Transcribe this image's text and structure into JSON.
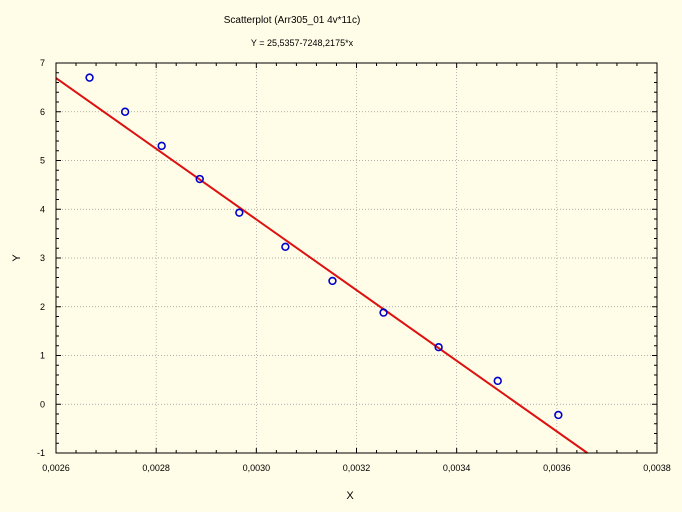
{
  "chart_data": {
    "type": "scatter",
    "title": "Scatterplot (Arr305_01 4v*11c)",
    "subtitle": "Y   = 25,5357-7248,2175*x",
    "xlabel": "X",
    "ylabel": "Y",
    "xlim": [
      0.0026,
      0.0038
    ],
    "ylim": [
      -1,
      7
    ],
    "xticks": [
      0.0026,
      0.0028,
      0.003,
      0.0032,
      0.0034,
      0.0036,
      0.0038
    ],
    "xtick_labels": [
      "0,0026",
      "0,0028",
      "0,0030",
      "0,0032",
      "0,0034",
      "0,0036",
      "0,0038"
    ],
    "yticks": [
      -1,
      0,
      1,
      2,
      3,
      4,
      5,
      6,
      7
    ],
    "ytick_labels": [
      "-1",
      "0",
      "1",
      "2",
      "3",
      "4",
      "5",
      "6",
      "7"
    ],
    "grid": true,
    "points": [
      {
        "x": 0.002667,
        "y": 6.7
      },
      {
        "x": 0.002738,
        "y": 6.0
      },
      {
        "x": 0.002811,
        "y": 5.3
      },
      {
        "x": 0.002887,
        "y": 4.62
      },
      {
        "x": 0.002966,
        "y": 3.93
      },
      {
        "x": 0.003058,
        "y": 3.23
      },
      {
        "x": 0.003152,
        "y": 2.53
      },
      {
        "x": 0.003254,
        "y": 1.88
      },
      {
        "x": 0.003364,
        "y": 1.17
      },
      {
        "x": 0.003482,
        "y": 0.48
      },
      {
        "x": 0.003603,
        "y": -0.22
      }
    ],
    "fit_line": {
      "intercept": 25.5357,
      "slope": -7248.2175
    },
    "colors": {
      "background": "#fffde7",
      "marker": "#0000cc",
      "fit_line": "#dd1111",
      "grid": "#999999",
      "axis": "#000000"
    }
  }
}
